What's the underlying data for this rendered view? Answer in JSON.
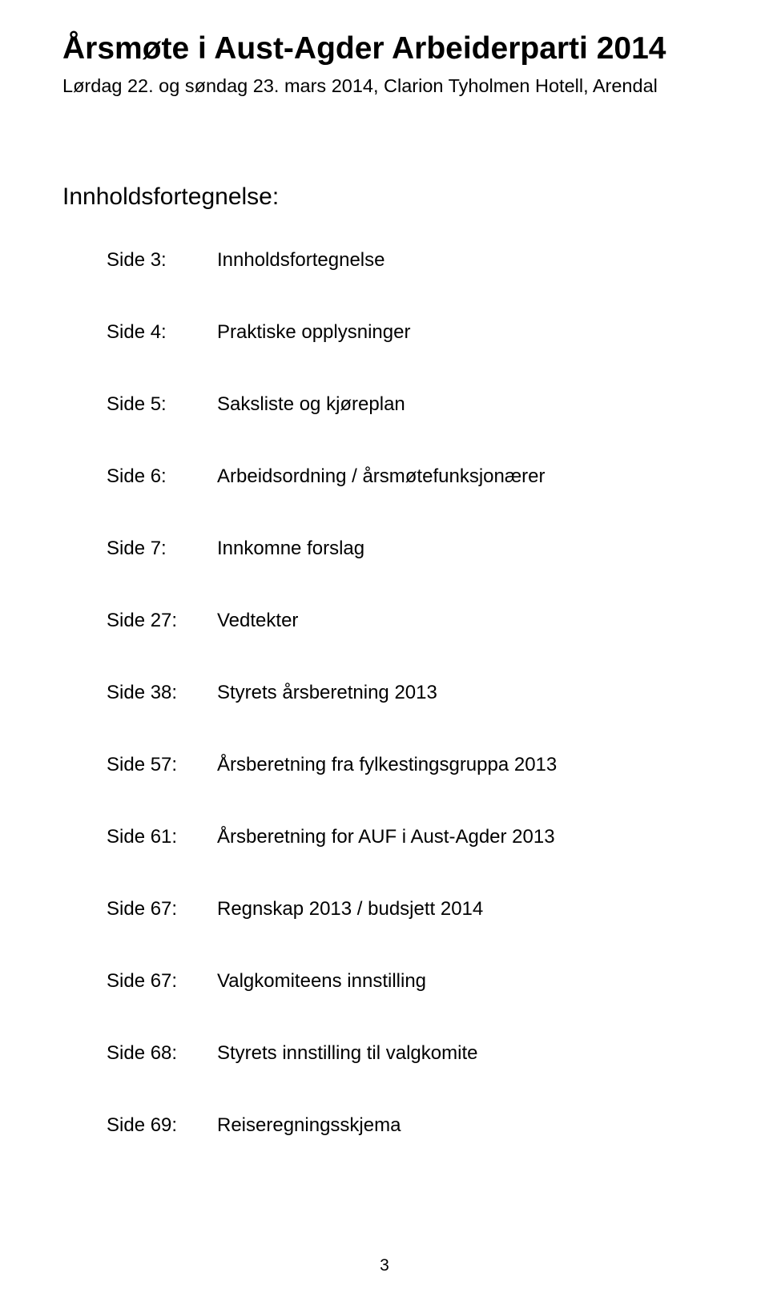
{
  "title": "Årsmøte i Aust-Agder Arbeiderparti 2014",
  "subtitle": "Lørdag 22. og søndag 23. mars 2014, Clarion Tyholmen Hotell, Arendal",
  "tocHeader": "Innholdsfortegnelse:",
  "toc": [
    {
      "label": "Side 3:",
      "desc": "Innholdsfortegnelse"
    },
    {
      "label": "Side 4:",
      "desc": "Praktiske opplysninger"
    },
    {
      "label": "Side 5:",
      "desc": "Saksliste og kjøreplan"
    },
    {
      "label": "Side 6:",
      "desc": "Arbeidsordning / årsmøtefunksjonærer"
    },
    {
      "label": "Side 7:",
      "desc": "Innkomne forslag"
    },
    {
      "label": "Side 27:",
      "desc": "Vedtekter"
    },
    {
      "label": "Side 38:",
      "desc": "Styrets årsberetning 2013"
    },
    {
      "label": "Side 57:",
      "desc": "Årsberetning fra fylkestingsgruppa 2013"
    },
    {
      "label": "Side 61:",
      "desc": "Årsberetning for AUF i Aust-Agder 2013"
    },
    {
      "label": "Side 67:",
      "desc": "Regnskap 2013 / budsjett 2014"
    },
    {
      "label": "Side 67:",
      "desc": "Valgkomiteens innstilling"
    },
    {
      "label": "Side 68:",
      "desc": "Styrets innstilling til valgkomite"
    },
    {
      "label": "Side 69:",
      "desc": "Reiseregningsskjema"
    }
  ],
  "pageNumber": "3"
}
